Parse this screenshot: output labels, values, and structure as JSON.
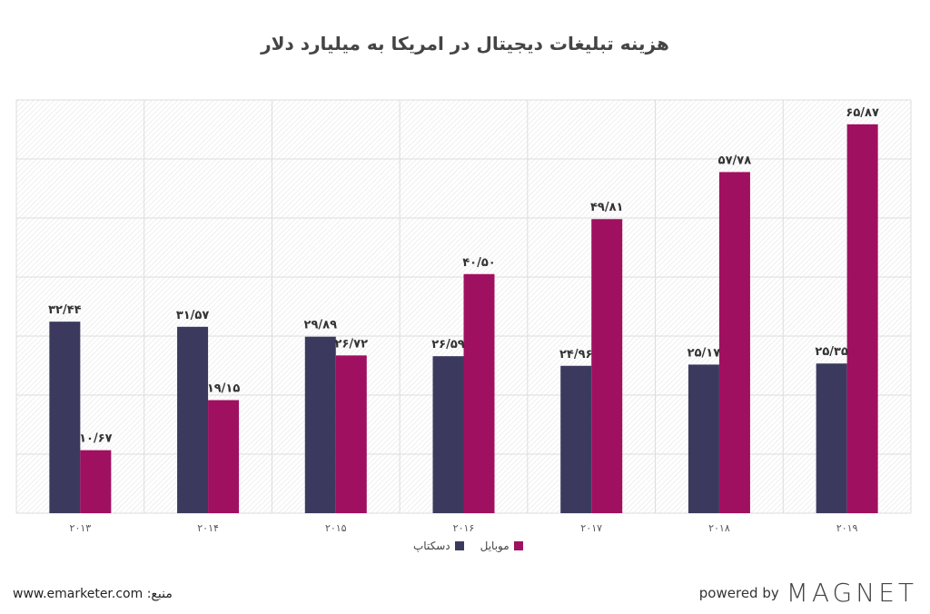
{
  "chart_data": {
    "type": "bar",
    "title": "هزینه تبلیغات دیجیتال در امریکا به میلیارد دلار",
    "categories": [
      "۲۰۱۳",
      "۲۰۱۴",
      "۲۰۱۵",
      "۲۰۱۶",
      "۲۰۱۷",
      "۲۰۱۸",
      "۲۰۱۹"
    ],
    "series": [
      {
        "name": "دسکتاپ",
        "color": "#3b3a5e",
        "values": [
          32.44,
          31.57,
          29.89,
          26.59,
          24.96,
          25.17,
          25.35
        ],
        "labels": [
          "۳۲/۴۴",
          "۳۱/۵۷",
          "۲۹/۸۹",
          "۲۶/۵۹",
          "۲۴/۹۶",
          "۲۵/۱۷",
          "۲۵/۳۵"
        ]
      },
      {
        "name": "موبایل",
        "color": "#a01060",
        "values": [
          10.67,
          19.15,
          26.72,
          40.5,
          49.81,
          57.78,
          65.87
        ],
        "labels": [
          "۱۰/۶۷",
          "۱۹/۱۵",
          "۲۶/۷۲",
          "۴۰/۵۰",
          "۴۹/۸۱",
          "۵۷/۷۸",
          "۶۵/۸۷"
        ]
      }
    ],
    "ylim": [
      0,
      70
    ],
    "grid": true,
    "legend_position": "bottom"
  },
  "footer": {
    "source": "www.emarketer.com :منبع",
    "powered_by": "powered by",
    "logo": "MAGNET"
  }
}
